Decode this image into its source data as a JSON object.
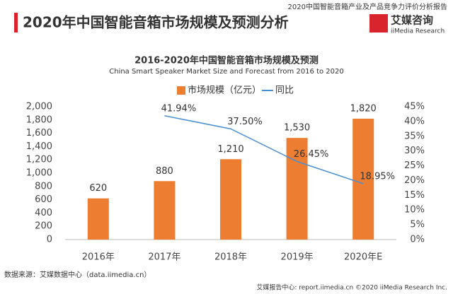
{
  "header": {
    "title": "2020年中国智能音箱市场规模及预测分析",
    "report": "2020中国智能音箱产业及产品竞争力评价分析报告",
    "logo": "艾媒咨询",
    "logo_en": "iiMedia Research"
  },
  "chart_data": {
    "type": "bar_line",
    "title": "2016-2020年中国智能音箱市场规模及预测",
    "subtitle": "China Smart Speaker Market Size and Forecast from 2016 to 2020",
    "categories": [
      "2016年",
      "2017年",
      "2018年",
      "2019年",
      "2020年E"
    ],
    "series": [
      {
        "name": "市场规模（亿元）",
        "color": "#ed7d31",
        "type": "bar",
        "values": [
          620,
          880,
          1210,
          1530,
          1820
        ],
        "value_labels": [
          "620",
          "880",
          "1,210",
          "1,530",
          "1,820"
        ]
      },
      {
        "name": "同比",
        "color": "#4a8fd0",
        "type": "line",
        "axis": "y2",
        "values": [
          null,
          41.94,
          37.5,
          26.45,
          18.95
        ],
        "value_labels": [
          null,
          "41.94%",
          "37.50%",
          "26.45%",
          "18.95%"
        ]
      }
    ],
    "ylim": [
      0,
      2000
    ],
    "yticks": [
      0,
      200,
      400,
      600,
      800,
      {
        "value": 1000,
        "label": "1,000"
      },
      {
        "value": 1200,
        "label": "1,200"
      },
      {
        "value": 1400,
        "label": "1,400"
      },
      {
        "value": 1600,
        "label": "1,600"
      },
      {
        "value": 1800,
        "label": "1,800"
      },
      {
        "value": 2000,
        "label": "2,000"
      }
    ],
    "y2lim": [
      0,
      45
    ],
    "y2ticks": [
      {
        "value": 0,
        "label": "0%"
      },
      {
        "value": 5,
        "label": "5%"
      },
      {
        "value": 10,
        "label": "10%"
      },
      {
        "value": 15,
        "label": "15%"
      },
      {
        "value": 20,
        "label": "20%"
      },
      {
        "value": 25,
        "label": "25%"
      },
      {
        "value": 30,
        "label": "30%"
      },
      {
        "value": 35,
        "label": "35%"
      },
      {
        "value": 40,
        "label": "40%"
      },
      {
        "value": 45,
        "label": "45%"
      }
    ],
    "source": "数据来源：艾媒数据中心（data.iimedia.cn）"
  },
  "footer": "艾媒报告中心: report.iimedia.cn  ©2020  iiMedia Research Inc."
}
